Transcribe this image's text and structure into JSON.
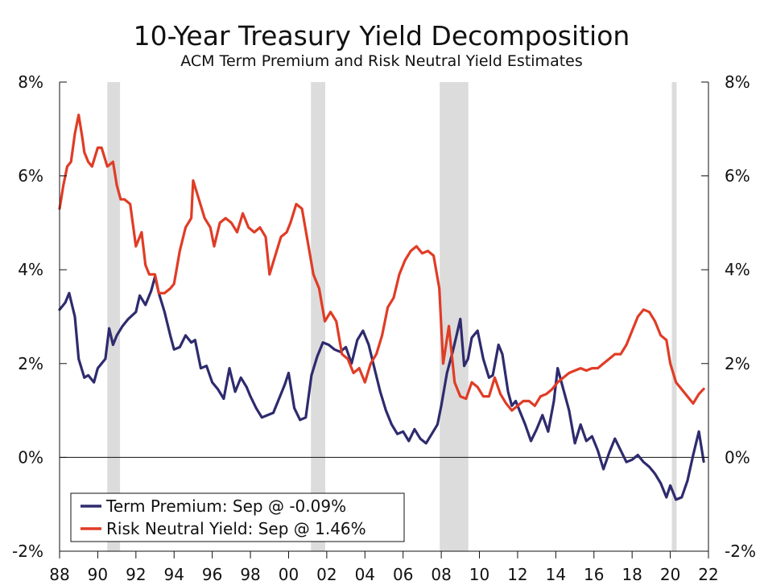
{
  "chart_data": {
    "type": "line",
    "title": "10-Year Treasury Yield Decomposition",
    "subtitle": "ACM Term Premium and Risk Neutral Yield Estimates",
    "xlabel": "",
    "ylabel": "",
    "xlim": [
      1988,
      2022
    ],
    "ylim": [
      -2,
      8
    ],
    "y_ticks": [
      8,
      6,
      4,
      2,
      0,
      -2
    ],
    "y_tick_labels": [
      "8%",
      "6%",
      "4%",
      "2%",
      "0%",
      "-2%"
    ],
    "x_ticks": [
      1988,
      1990,
      1992,
      1994,
      1996,
      1998,
      2000,
      2002,
      2004,
      2006,
      2008,
      2010,
      2012,
      2014,
      2016,
      2018,
      2020,
      2022
    ],
    "x_tick_labels": [
      "88",
      "90",
      "92",
      "94",
      "96",
      "98",
      "00",
      "02",
      "04",
      "06",
      "08",
      "10",
      "12",
      "14",
      "16",
      "18",
      "20",
      "22"
    ],
    "recessions": [
      [
        1990.5,
        1991.17
      ],
      [
        2001.17,
        2001.92
      ],
      [
        2007.92,
        2009.42
      ],
      [
        2020.08,
        2020.33
      ]
    ],
    "zero_line": 0,
    "legend_position": "bottom-left",
    "series": [
      {
        "name": "Term Premium",
        "legend_label": "Term Premium: Sep @ -0.09%",
        "color": "#2e2b6e",
        "x": [
          1988.0,
          1988.3,
          1988.5,
          1988.8,
          1989.0,
          1989.3,
          1989.5,
          1989.8,
          1990.0,
          1990.4,
          1990.6,
          1990.8,
          1991.0,
          1991.3,
          1991.6,
          1992.0,
          1992.2,
          1992.5,
          1992.8,
          1993.0,
          1993.2,
          1993.5,
          1993.8,
          1994.0,
          1994.3,
          1994.6,
          1994.9,
          1995.1,
          1995.4,
          1995.7,
          1996.0,
          1996.3,
          1996.6,
          1996.9,
          1997.2,
          1997.5,
          1997.8,
          1998.0,
          1998.3,
          1998.6,
          1998.9,
          1999.2,
          1999.5,
          1999.8,
          2000.0,
          2000.3,
          2000.6,
          2000.9,
          2001.2,
          2001.5,
          2001.8,
          2002.1,
          2002.4,
          2002.7,
          2003.0,
          2003.3,
          2003.6,
          2003.9,
          2004.2,
          2004.5,
          2004.8,
          2005.1,
          2005.4,
          2005.7,
          2006.0,
          2006.3,
          2006.6,
          2006.9,
          2007.2,
          2007.5,
          2007.8,
          2008.0,
          2008.3,
          2008.6,
          2008.8,
          2009.0,
          2009.2,
          2009.4,
          2009.6,
          2009.9,
          2010.2,
          2010.5,
          2010.7,
          2011.0,
          2011.2,
          2011.5,
          2011.7,
          2011.9,
          2012.1,
          2012.4,
          2012.7,
          2013.0,
          2013.3,
          2013.6,
          2013.9,
          2014.1,
          2014.4,
          2014.7,
          2015.0,
          2015.3,
          2015.6,
          2015.9,
          2016.2,
          2016.5,
          2016.8,
          2017.1,
          2017.4,
          2017.7,
          2018.0,
          2018.3,
          2018.6,
          2018.9,
          2019.2,
          2019.5,
          2019.8,
          2020.0,
          2020.3,
          2020.6,
          2020.9,
          2021.2,
          2021.5,
          2021.75
        ],
        "values": [
          3.15,
          3.3,
          3.5,
          3.0,
          2.1,
          1.7,
          1.75,
          1.6,
          1.9,
          2.1,
          2.75,
          2.4,
          2.6,
          2.8,
          2.95,
          3.1,
          3.45,
          3.25,
          3.55,
          3.85,
          3.5,
          3.1,
          2.6,
          2.3,
          2.35,
          2.6,
          2.45,
          2.5,
          1.9,
          1.95,
          1.6,
          1.45,
          1.25,
          1.9,
          1.4,
          1.7,
          1.5,
          1.3,
          1.05,
          0.85,
          0.9,
          0.95,
          1.25,
          1.55,
          1.8,
          1.05,
          0.8,
          0.85,
          1.75,
          2.15,
          2.45,
          2.4,
          2.3,
          2.25,
          2.35,
          2.0,
          2.5,
          2.7,
          2.4,
          1.9,
          1.4,
          1.0,
          0.7,
          0.5,
          0.55,
          0.35,
          0.6,
          0.4,
          0.3,
          0.5,
          0.7,
          1.1,
          1.8,
          2.25,
          2.6,
          2.95,
          1.95,
          2.1,
          2.55,
          2.7,
          2.1,
          1.7,
          1.75,
          2.4,
          2.2,
          1.4,
          1.1,
          1.2,
          1.0,
          0.7,
          0.35,
          0.6,
          0.9,
          0.55,
          1.2,
          1.9,
          1.45,
          1.0,
          0.3,
          0.7,
          0.35,
          0.45,
          0.15,
          -0.25,
          0.1,
          0.4,
          0.15,
          -0.1,
          -0.05,
          0.05,
          -0.1,
          -0.2,
          -0.35,
          -0.55,
          -0.85,
          -0.6,
          -0.9,
          -0.85,
          -0.5,
          0.05,
          0.55,
          -0.09
        ]
      },
      {
        "name": "Risk Neutral Yield",
        "legend_label": "Risk Neutral Yield: Sep @ 1.46%",
        "color": "#e03c26",
        "x": [
          1988.0,
          1988.2,
          1988.4,
          1988.6,
          1988.8,
          1989.0,
          1989.2,
          1989.3,
          1989.5,
          1989.7,
          1990.0,
          1990.2,
          1990.5,
          1990.8,
          1991.0,
          1991.2,
          1991.4,
          1991.7,
          1992.0,
          1992.3,
          1992.5,
          1992.7,
          1993.0,
          1993.2,
          1993.5,
          1993.8,
          1994.0,
          1994.3,
          1994.6,
          1994.9,
          1995.0,
          1995.3,
          1995.6,
          1995.9,
          1996.1,
          1996.4,
          1996.7,
          1997.0,
          1997.3,
          1997.6,
          1997.9,
          1998.2,
          1998.5,
          1998.8,
          1999.0,
          1999.3,
          1999.6,
          1999.9,
          2000.1,
          2000.4,
          2000.7,
          2001.0,
          2001.3,
          2001.6,
          2001.9,
          2002.2,
          2002.5,
          2002.8,
          2003.1,
          2003.4,
          2003.7,
          2004.0,
          2004.3,
          2004.6,
          2004.9,
          2005.2,
          2005.5,
          2005.8,
          2006.1,
          2006.4,
          2006.7,
          2007.0,
          2007.3,
          2007.6,
          2007.9,
          2008.1,
          2008.4,
          2008.7,
          2009.0,
          2009.3,
          2009.6,
          2009.9,
          2010.2,
          2010.5,
          2010.8,
          2011.1,
          2011.4,
          2011.7,
          2012.0,
          2012.3,
          2012.6,
          2012.9,
          2013.2,
          2013.5,
          2013.8,
          2014.1,
          2014.4,
          2014.7,
          2015.0,
          2015.3,
          2015.6,
          2015.9,
          2016.2,
          2016.5,
          2016.8,
          2017.1,
          2017.4,
          2017.7,
          2018.0,
          2018.3,
          2018.6,
          2018.9,
          2019.2,
          2019.5,
          2019.8,
          2020.0,
          2020.3,
          2020.6,
          2020.9,
          2021.2,
          2021.5,
          2021.75
        ],
        "values": [
          5.3,
          5.8,
          6.2,
          6.3,
          6.9,
          7.3,
          6.8,
          6.5,
          6.3,
          6.2,
          6.6,
          6.6,
          6.2,
          6.3,
          5.8,
          5.5,
          5.5,
          5.4,
          4.5,
          4.8,
          4.1,
          3.9,
          3.9,
          3.5,
          3.5,
          3.6,
          3.7,
          4.4,
          4.9,
          5.1,
          5.9,
          5.5,
          5.1,
          4.9,
          4.5,
          5.0,
          5.1,
          5.0,
          4.8,
          5.2,
          4.9,
          4.8,
          4.9,
          4.7,
          3.9,
          4.3,
          4.7,
          4.8,
          5.0,
          5.4,
          5.3,
          4.6,
          3.9,
          3.6,
          2.9,
          3.1,
          2.9,
          2.2,
          2.1,
          1.8,
          1.9,
          1.6,
          2.0,
          2.2,
          2.6,
          3.2,
          3.4,
          3.9,
          4.2,
          4.4,
          4.5,
          4.35,
          4.4,
          4.3,
          3.6,
          2.0,
          2.8,
          1.6,
          1.3,
          1.25,
          1.6,
          1.5,
          1.3,
          1.3,
          1.7,
          1.35,
          1.15,
          1.0,
          1.1,
          1.2,
          1.2,
          1.1,
          1.3,
          1.35,
          1.45,
          1.6,
          1.7,
          1.8,
          1.85,
          1.9,
          1.85,
          1.9,
          1.9,
          2.0,
          2.1,
          2.2,
          2.2,
          2.4,
          2.7,
          3.0,
          3.15,
          3.1,
          2.9,
          2.6,
          2.5,
          2.0,
          1.6,
          1.45,
          1.3,
          1.15,
          1.35,
          1.46
        ]
      }
    ]
  }
}
